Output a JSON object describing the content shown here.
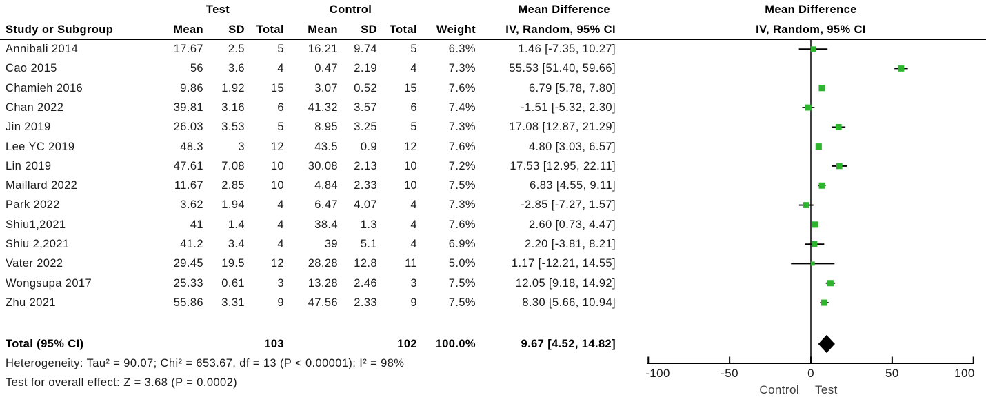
{
  "chart_data": {
    "type": "forest",
    "effect_measure": "Mean Difference",
    "method": "IV, Random, 95% CI",
    "group_headers": {
      "test": "Test",
      "control": "Control",
      "effect": "Mean Difference"
    },
    "columns": {
      "study": "Study or Subgroup",
      "mean": "Mean",
      "sd": "SD",
      "total": "Total",
      "weight": "Weight",
      "method": "IV, Random, 95% CI"
    },
    "studies": [
      {
        "name": "Annibali 2014",
        "test_mean": "17.67",
        "test_sd": "2.5",
        "test_total": "5",
        "control_mean": "16.21",
        "control_sd": "9.74",
        "control_total": "5",
        "weight": "6.3%",
        "md": 1.46,
        "ci_low": -7.35,
        "ci_high": 10.27,
        "ci_text": "1.46 [-7.35, 10.27]"
      },
      {
        "name": "Cao 2015",
        "test_mean": "56",
        "test_sd": "3.6",
        "test_total": "4",
        "control_mean": "0.47",
        "control_sd": "2.19",
        "control_total": "4",
        "weight": "7.3%",
        "md": 55.53,
        "ci_low": 51.4,
        "ci_high": 59.66,
        "ci_text": "55.53 [51.40, 59.66]"
      },
      {
        "name": "Chamieh 2016",
        "test_mean": "9.86",
        "test_sd": "1.92",
        "test_total": "15",
        "control_mean": "3.07",
        "control_sd": "0.52",
        "control_total": "15",
        "weight": "7.6%",
        "md": 6.79,
        "ci_low": 5.78,
        "ci_high": 7.8,
        "ci_text": "6.79 [5.78, 7.80]"
      },
      {
        "name": "Chan 2022",
        "test_mean": "39.81",
        "test_sd": "3.16",
        "test_total": "6",
        "control_mean": "41.32",
        "control_sd": "3.57",
        "control_total": "6",
        "weight": "7.4%",
        "md": -1.51,
        "ci_low": -5.32,
        "ci_high": 2.3,
        "ci_text": "-1.51 [-5.32, 2.30]"
      },
      {
        "name": "Jin 2019",
        "test_mean": "26.03",
        "test_sd": "3.53",
        "test_total": "5",
        "control_mean": "8.95",
        "control_sd": "3.25",
        "control_total": "5",
        "weight": "7.3%",
        "md": 17.08,
        "ci_low": 12.87,
        "ci_high": 21.29,
        "ci_text": "17.08 [12.87, 21.29]"
      },
      {
        "name": "Lee YC 2019",
        "test_mean": "48.3",
        "test_sd": "3",
        "test_total": "12",
        "control_mean": "43.5",
        "control_sd": "0.9",
        "control_total": "12",
        "weight": "7.6%",
        "md": 4.8,
        "ci_low": 3.03,
        "ci_high": 6.57,
        "ci_text": "4.80 [3.03, 6.57]"
      },
      {
        "name": "Lin 2019",
        "test_mean": "47.61",
        "test_sd": "7.08",
        "test_total": "10",
        "control_mean": "30.08",
        "control_sd": "2.13",
        "control_total": "10",
        "weight": "7.2%",
        "md": 17.53,
        "ci_low": 12.95,
        "ci_high": 22.11,
        "ci_text": "17.53 [12.95, 22.11]"
      },
      {
        "name": "Maillard 2022",
        "test_mean": "11.67",
        "test_sd": "2.85",
        "test_total": "10",
        "control_mean": "4.84",
        "control_sd": "2.33",
        "control_total": "10",
        "weight": "7.5%",
        "md": 6.83,
        "ci_low": 4.55,
        "ci_high": 9.11,
        "ci_text": "6.83 [4.55, 9.11]"
      },
      {
        "name": "Park 2022",
        "test_mean": "3.62",
        "test_sd": "1.94",
        "test_total": "4",
        "control_mean": "6.47",
        "control_sd": "4.07",
        "control_total": "4",
        "weight": "7.3%",
        "md": -2.85,
        "ci_low": -7.27,
        "ci_high": 1.57,
        "ci_text": "-2.85 [-7.27, 1.57]"
      },
      {
        "name": "Shiu1,2021",
        "test_mean": "41",
        "test_sd": "1.4",
        "test_total": "4",
        "control_mean": "38.4",
        "control_sd": "1.3",
        "control_total": "4",
        "weight": "7.6%",
        "md": 2.6,
        "ci_low": 0.73,
        "ci_high": 4.47,
        "ci_text": "2.60 [0.73, 4.47]"
      },
      {
        "name": "Shiu 2,2021",
        "test_mean": "41.2",
        "test_sd": "3.4",
        "test_total": "4",
        "control_mean": "39",
        "control_sd": "5.1",
        "control_total": "4",
        "weight": "6.9%",
        "md": 2.2,
        "ci_low": -3.81,
        "ci_high": 8.21,
        "ci_text": "2.20 [-3.81, 8.21]"
      },
      {
        "name": "Vater 2022",
        "test_mean": "29.45",
        "test_sd": "19.5",
        "test_total": "12",
        "control_mean": "28.28",
        "control_sd": "12.8",
        "control_total": "11",
        "weight": "5.0%",
        "md": 1.17,
        "ci_low": -12.21,
        "ci_high": 14.55,
        "ci_text": "1.17 [-12.21, 14.55]"
      },
      {
        "name": "Wongsupa 2017",
        "test_mean": "25.33",
        "test_sd": "0.61",
        "test_total": "3",
        "control_mean": "13.28",
        "control_sd": "2.46",
        "control_total": "3",
        "weight": "7.5%",
        "md": 12.05,
        "ci_low": 9.18,
        "ci_high": 14.92,
        "ci_text": "12.05 [9.18, 14.92]"
      },
      {
        "name": "Zhu 2021",
        "test_mean": "55.86",
        "test_sd": "3.31",
        "test_total": "9",
        "control_mean": "47.56",
        "control_sd": "2.33",
        "control_total": "9",
        "weight": "7.5%",
        "md": 8.3,
        "ci_low": 5.66,
        "ci_high": 10.94,
        "ci_text": "8.30 [5.66, 10.94]"
      }
    ],
    "total": {
      "label": "Total (95% CI)",
      "test_total": "103",
      "control_total": "102",
      "weight": "100.0%",
      "md": 9.67,
      "ci_low": 4.52,
      "ci_high": 14.82,
      "ci_text": "9.67 [4.52, 14.82]"
    },
    "heterogeneity": "Heterogeneity: Tau² = 90.07; Chi² = 653.67, df = 13 (P < 0.00001); I² = 98%",
    "overall_effect": "Test for overall effect: Z = 3.68 (P = 0.0002)",
    "axis": {
      "min": -100,
      "max": 100,
      "ticks": [
        "-100",
        "-50",
        "0",
        "50",
        "100"
      ],
      "left_label": "Control",
      "right_label": "Test"
    },
    "style": {
      "marker_color": "#2DB52D",
      "diamond_color": "#000000",
      "line_color": "#000000"
    }
  }
}
